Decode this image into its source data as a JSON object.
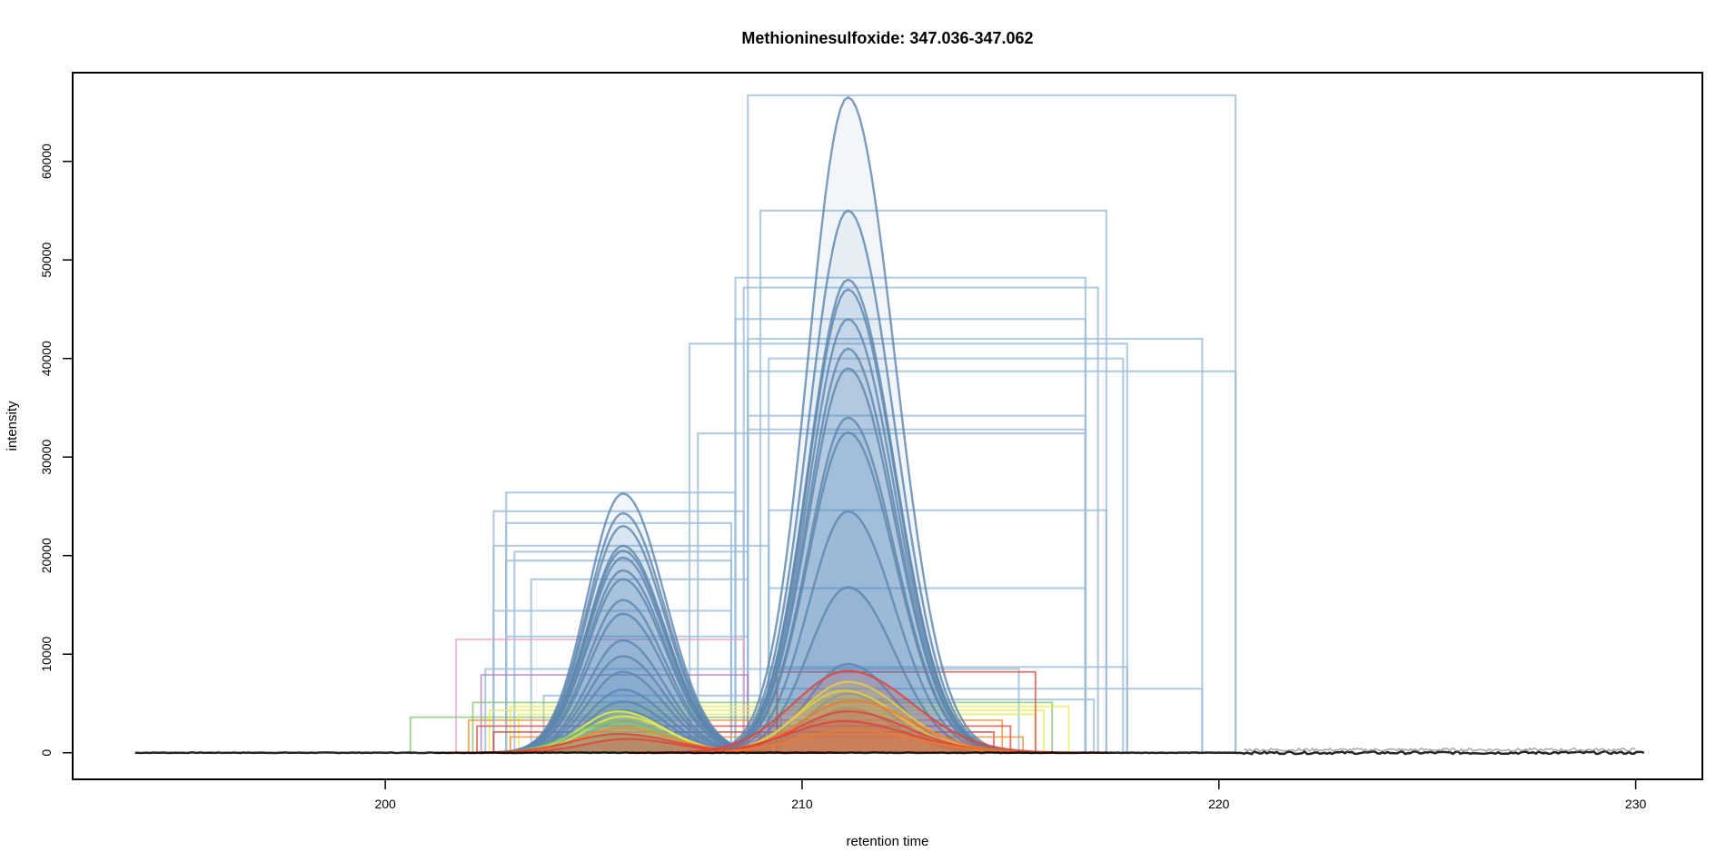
{
  "chart_data": {
    "type": "line",
    "title": "Methioninesulfoxide: 347.036-347.062",
    "xlabel": "retention time",
    "ylabel": "intensity",
    "xlim": [
      192.5,
      231.6
    ],
    "ylim": [
      -2700,
      69000
    ],
    "x_ticks": [
      200,
      210,
      220,
      230
    ],
    "y_ticks": [
      0,
      10000,
      20000,
      30000,
      40000,
      50000,
      60000
    ],
    "grid": false,
    "legend": "none",
    "x_range_data": [
      194.0,
      230.2
    ],
    "colors": {
      "peak_blue": "#4a7fb5",
      "peak_blue_line": "#5b85ad",
      "fill_blue": "#4a7fb5",
      "rect_blue": "#9cbcd8",
      "yellow": "#e6ec4a",
      "red": "#e0443a",
      "orange": "#f08a2c",
      "green": "#7fc36a",
      "purple": "#b07cc0",
      "pink": "#e7a0c8",
      "baseline": "#000000"
    },
    "peak_groups": [
      {
        "name": "",
        "center": 205.7,
        "width": 0.85,
        "amplitudes": [
          26300,
          24300,
          23000,
          21000,
          20500,
          19800,
          18500,
          17600,
          15500,
          14100,
          11400,
          9800,
          8200,
          6400,
          5200,
          4300,
          3200
        ]
      },
      {
        "name": "",
        "center": 211.1,
        "width": 0.95,
        "amplitudes": [
          66500,
          55000,
          48000,
          47000,
          44000,
          41000,
          39000,
          34000,
          32500,
          24500,
          16800,
          9000,
          6000,
          4500
        ]
      }
    ],
    "integration_boxes": [
      {
        "x0": 208.7,
        "x1": 220.4,
        "y": 66700
      },
      {
        "x0": 209.0,
        "x1": 217.3,
        "y": 55000
      },
      {
        "x0": 208.4,
        "x1": 216.8,
        "y": 48200
      },
      {
        "x0": 208.6,
        "x1": 217.1,
        "y": 47200
      },
      {
        "x0": 208.4,
        "x1": 216.8,
        "y": 44000
      },
      {
        "x0": 207.3,
        "x1": 217.8,
        "y": 41500
      },
      {
        "x0": 208.7,
        "x1": 219.6,
        "y": 42000
      },
      {
        "x0": 209.2,
        "x1": 217.7,
        "y": 40000
      },
      {
        "x0": 208.7,
        "x1": 220.4,
        "y": 38700
      },
      {
        "x0": 208.7,
        "x1": 216.8,
        "y": 34200
      },
      {
        "x0": 208.7,
        "x1": 216.8,
        "y": 32800
      },
      {
        "x0": 207.5,
        "x1": 216.8,
        "y": 32400
      },
      {
        "x0": 209.2,
        "x1": 217.3,
        "y": 24600
      },
      {
        "x0": 209.2,
        "x1": 216.8,
        "y": 16700
      },
      {
        "x0": 202.9,
        "x1": 208.4,
        "y": 26400
      },
      {
        "x0": 202.6,
        "x1": 208.6,
        "y": 24500
      },
      {
        "x0": 202.9,
        "x1": 208.3,
        "y": 23300
      },
      {
        "x0": 202.6,
        "x1": 209.2,
        "y": 21000
      },
      {
        "x0": 203.1,
        "x1": 208.7,
        "y": 20400
      },
      {
        "x0": 202.9,
        "x1": 208.3,
        "y": 19500
      },
      {
        "x0": 203.5,
        "x1": 208.7,
        "y": 17600
      },
      {
        "x0": 202.6,
        "x1": 208.3,
        "y": 14400
      },
      {
        "x0": 202.9,
        "x1": 208.7,
        "y": 11800
      },
      {
        "x0": 202.4,
        "x1": 215.2,
        "y": 8500
      },
      {
        "x0": 209.2,
        "x1": 217.8,
        "y": 8700
      },
      {
        "x0": 209.4,
        "x1": 219.6,
        "y": 6500
      },
      {
        "x0": 209.0,
        "x1": 217.0,
        "y": 5400
      },
      {
        "x0": 203.8,
        "x1": 209.0,
        "y": 5800
      }
    ],
    "minor_boxes": [
      {
        "x0": 201.7,
        "x1": 208.6,
        "y": 11500,
        "color": "pink"
      },
      {
        "x0": 202.3,
        "x1": 208.7,
        "y": 7900,
        "color": "purple"
      },
      {
        "x0": 200.6,
        "x1": 209.5,
        "y": 3600,
        "color": "green"
      },
      {
        "x0": 202.1,
        "x1": 216.0,
        "y": 5100,
        "color": "green"
      },
      {
        "x0": 203.0,
        "x1": 216.4,
        "y": 4700,
        "color": "yellow"
      },
      {
        "x0": 202.5,
        "x1": 215.8,
        "y": 4300,
        "color": "yellow"
      },
      {
        "x0": 203.2,
        "x1": 215.6,
        "y": 3900,
        "color": "yellow"
      },
      {
        "x0": 202.0,
        "x1": 214.8,
        "y": 3300,
        "color": "orange"
      },
      {
        "x0": 202.2,
        "x1": 215.0,
        "y": 2700,
        "color": "red"
      },
      {
        "x0": 202.6,
        "x1": 214.6,
        "y": 2100,
        "color": "red"
      },
      {
        "x0": 203.0,
        "x1": 215.3,
        "y": 1600,
        "color": "orange"
      },
      {
        "x0": 209.4,
        "x1": 215.6,
        "y": 8200,
        "color": "red"
      }
    ],
    "minor_peaks": [
      {
        "center": 205.6,
        "width": 0.9,
        "amp": 4200,
        "color": "yellow"
      },
      {
        "center": 205.7,
        "width": 0.9,
        "amp": 3700,
        "color": "yellow"
      },
      {
        "center": 205.5,
        "width": 1.0,
        "amp": 3100,
        "color": "green"
      },
      {
        "center": 205.7,
        "width": 1.0,
        "amp": 2500,
        "color": "orange"
      },
      {
        "center": 205.6,
        "width": 1.1,
        "amp": 1900,
        "color": "red"
      },
      {
        "center": 205.8,
        "width": 1.0,
        "amp": 1400,
        "color": "red"
      },
      {
        "center": 211.1,
        "width": 1.1,
        "amp": 7200,
        "color": "yellow"
      },
      {
        "center": 211.0,
        "width": 1.1,
        "amp": 6300,
        "color": "yellow"
      },
      {
        "center": 211.2,
        "width": 1.2,
        "amp": 5300,
        "color": "orange"
      },
      {
        "center": 211.1,
        "width": 1.2,
        "amp": 4200,
        "color": "red"
      },
      {
        "center": 211.0,
        "width": 1.3,
        "amp": 3200,
        "color": "red"
      },
      {
        "center": 211.2,
        "width": 1.3,
        "amp": 2300,
        "color": "orange"
      },
      {
        "center": 211.1,
        "width": 1.3,
        "amp": 8300,
        "color": "red"
      }
    ]
  }
}
